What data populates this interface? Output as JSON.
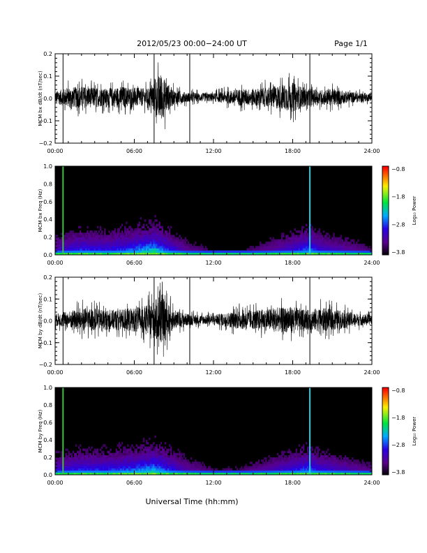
{
  "header": {
    "title": "2012/05/23  00:00−24:00 UT",
    "page": "Page 1/1"
  },
  "xlabel": "Universal Time (hh:mm)",
  "chart_data": [
    {
      "type": "line",
      "ylabel": "MCM bx dB/dt (nT/sec)",
      "xlim": [
        0,
        24
      ],
      "ylim": [
        -0.2,
        0.2
      ],
      "x_ticks": [
        "00:00",
        "06:00",
        "12:00",
        "18:00",
        "24:00"
      ],
      "y_ticks": [
        "0.2",
        "0.1",
        "0.0",
        "−0.1",
        "−0.2"
      ],
      "markers_hours": [
        0.6,
        7.5,
        10.2,
        19.3
      ],
      "envelope_hours": [
        0,
        1,
        2,
        3,
        4,
        5,
        6,
        7,
        7.5,
        8,
        8.5,
        9,
        10,
        11,
        12,
        13,
        14,
        15,
        16,
        17,
        18,
        19,
        20,
        21,
        22,
        23,
        24
      ],
      "envelope_amp": [
        0.05,
        0.08,
        0.09,
        0.08,
        0.07,
        0.09,
        0.08,
        0.07,
        0.12,
        0.2,
        0.12,
        0.06,
        0.04,
        0.035,
        0.035,
        0.05,
        0.07,
        0.07,
        0.08,
        0.1,
        0.12,
        0.07,
        0.06,
        0.07,
        0.05,
        0.04,
        0.03
      ]
    },
    {
      "type": "heatmap",
      "ylabel": "MCM bx Freq (Hz)",
      "xlim": [
        0,
        24
      ],
      "ylim": [
        0,
        1
      ],
      "x_ticks": [
        "00:00",
        "06:00",
        "12:00",
        "18:00",
        "24:00"
      ],
      "y_ticks": [
        "1.0",
        "0.8",
        "0.6",
        "0.4",
        "0.2",
        "0.0"
      ],
      "colorbar": {
        "label": "Log₁₀ Power",
        "ticks": [
          "−0.8",
          "−1.8",
          "−2.8",
          "−3.8"
        ],
        "range": [
          -3.8,
          -0.8
        ]
      },
      "bright_lines_hours": [
        0.6,
        19.3
      ],
      "activity_hours": [
        0,
        2,
        4,
        6,
        7.5,
        9,
        10,
        12,
        14,
        16,
        18,
        19.3,
        20,
        22,
        24
      ],
      "activity_level": [
        0.4,
        0.6,
        0.55,
        0.7,
        0.9,
        0.5,
        0.3,
        0.15,
        0.15,
        0.3,
        0.5,
        0.7,
        0.5,
        0.35,
        0.2
      ]
    },
    {
      "type": "line",
      "ylabel": "MCM by dB/dt (nT/sec)",
      "xlim": [
        0,
        24
      ],
      "ylim": [
        -0.2,
        0.2
      ],
      "x_ticks": [
        "00:00",
        "06:00",
        "12:00",
        "18:00",
        "24:00"
      ],
      "y_ticks": [
        "0.2",
        "0.1",
        "0.0",
        "−0.1",
        "−0.2"
      ],
      "markers_hours": [
        0.6,
        7.5,
        10.2,
        19.3
      ],
      "envelope_hours": [
        0,
        1,
        2,
        3,
        4,
        5,
        6,
        7,
        7.5,
        8,
        8.5,
        9,
        10,
        11,
        12,
        13,
        14,
        15,
        16,
        17,
        18,
        19,
        20,
        21,
        22,
        23,
        24
      ],
      "envelope_amp": [
        0.05,
        0.07,
        0.1,
        0.09,
        0.08,
        0.09,
        0.1,
        0.12,
        0.16,
        0.2,
        0.14,
        0.08,
        0.05,
        0.04,
        0.04,
        0.06,
        0.08,
        0.08,
        0.09,
        0.1,
        0.11,
        0.08,
        0.1,
        0.09,
        0.07,
        0.05,
        0.04
      ]
    },
    {
      "type": "heatmap",
      "ylabel": "MCM by Freq (Hz)",
      "xlim": [
        0,
        24
      ],
      "ylim": [
        0,
        1
      ],
      "x_ticks": [
        "00:00",
        "06:00",
        "12:00",
        "18:00",
        "24:00"
      ],
      "y_ticks": [
        "1.0",
        "0.8",
        "0.6",
        "0.4",
        "0.2",
        "0.0"
      ],
      "colorbar": {
        "label": "Log₁₀ Power",
        "ticks": [
          "−0.8",
          "−1.8",
          "−2.8",
          "−3.8"
        ],
        "range": [
          -3.8,
          -0.8
        ]
      },
      "bright_lines_hours": [
        0.6,
        19.3
      ],
      "activity_hours": [
        0,
        2,
        4,
        6,
        7.5,
        9,
        10,
        12,
        14,
        16,
        18,
        19.3,
        20,
        22,
        24
      ],
      "activity_level": [
        0.45,
        0.6,
        0.6,
        0.7,
        0.85,
        0.55,
        0.35,
        0.2,
        0.2,
        0.35,
        0.55,
        0.7,
        0.55,
        0.4,
        0.25
      ]
    }
  ]
}
